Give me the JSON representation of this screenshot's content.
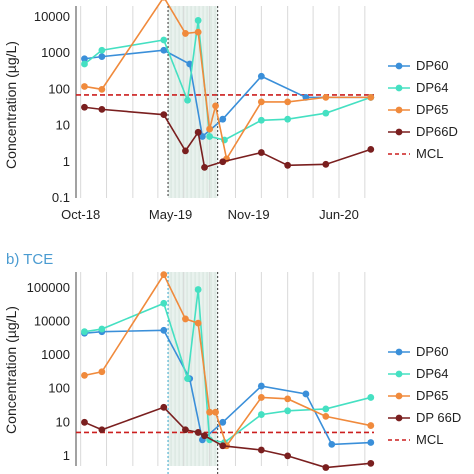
{
  "colors": {
    "DP60": "#3a8fd9",
    "DP64": "#45e0c2",
    "DP65": "#f08a3c",
    "DP66D": "#7a1f1f",
    "MCL": "#cc1f1f",
    "grid": "#d9d9d9",
    "shade": "#cfe3d9",
    "panel_label": "#4a9bd1"
  },
  "chart_data": [
    {
      "panel": "",
      "type": "line",
      "title": "",
      "xlabel": "",
      "ylabel": "Concentration (µg/L)",
      "yscale": "log",
      "ylim": [
        0.1,
        20000
      ],
      "yticks": [
        0.1,
        1,
        10,
        100,
        1000,
        10000
      ],
      "ytick_labels": [
        "0.1",
        "1",
        "10",
        "100",
        "1000",
        "10000"
      ],
      "xlim": [
        "2018-09-20",
        "2020-09-01"
      ],
      "xticks": [
        "2018-10-01",
        "2019-05-01",
        "2019-11-01",
        "2020-06-01"
      ],
      "xtick_labels": [
        "Oct-18",
        "May-19",
        "Nov-19",
        "Jun-20"
      ],
      "vlines": [
        "2019-04-25",
        "2019-08-20"
      ],
      "shaded_x": [
        "2019-04-25",
        "2019-08-20"
      ],
      "grid": "vertical",
      "legend": "right",
      "series": [
        {
          "name": "DP60",
          "x": [
            "2018-10-10",
            "2018-11-20",
            "2019-04-15",
            "2019-06-15",
            "2019-07-15",
            "2019-09-01",
            "2019-12-01",
            "2020-03-15",
            "2020-08-15"
          ],
          "y": [
            700,
            800,
            1200,
            500,
            5,
            15,
            230,
            60,
            60
          ]
        },
        {
          "name": "DP64",
          "x": [
            "2018-10-10",
            "2018-11-20",
            "2019-04-15",
            "2019-06-10",
            "2019-07-05",
            "2019-08-01",
            "2019-09-05",
            "2019-12-01",
            "2020-02-01",
            "2020-05-01",
            "2020-08-15"
          ],
          "y": [
            500,
            1200,
            2300,
            50,
            8000,
            5,
            4,
            14,
            15,
            22,
            60
          ]
        },
        {
          "name": "DP65",
          "x": [
            "2018-10-10",
            "2018-11-20",
            "2019-04-15",
            "2019-06-05",
            "2019-07-05",
            "2019-08-01",
            "2019-08-15",
            "2019-09-10",
            "2019-12-01",
            "2020-02-01",
            "2020-05-01",
            "2020-08-15"
          ],
          "y": [
            120,
            100,
            35000,
            3500,
            3800,
            8,
            35,
            1.2,
            45,
            45,
            60,
            60
          ]
        },
        {
          "name": "DP66D",
          "x": [
            "2018-10-10",
            "2018-11-20",
            "2019-04-15",
            "2019-06-05",
            "2019-07-05",
            "2019-07-20",
            "2019-09-01",
            "2019-12-01",
            "2020-02-01",
            "2020-05-01",
            "2020-08-15"
          ],
          "y": [
            32,
            28,
            20,
            2,
            6.5,
            0.7,
            1,
            1.8,
            0.8,
            0.85,
            2.2
          ]
        }
      ],
      "reference": {
        "name": "MCL",
        "y": 70
      }
    },
    {
      "panel": "b) TCE",
      "type": "line",
      "title": "b) TCE",
      "xlabel": "",
      "ylabel": "Concentration (µg/L)",
      "yscale": "log",
      "ylim": [
        0.5,
        300000
      ],
      "yticks": [
        1,
        10,
        100,
        1000,
        10000,
        100000
      ],
      "ytick_labels": [
        "1",
        "10",
        "100",
        "1000",
        "10000",
        "100000"
      ],
      "xlim": [
        "2018-09-20",
        "2020-09-01"
      ],
      "xticks": [],
      "xtick_labels": [],
      "vlines": [
        "2019-04-25",
        "2019-08-20"
      ],
      "shaded_x": [
        "2019-04-25",
        "2019-08-20"
      ],
      "grid": "vertical",
      "legend": "right",
      "series": [
        {
          "name": "DP60",
          "x": [
            "2018-10-10",
            "2018-11-20",
            "2019-04-15",
            "2019-06-15",
            "2019-07-15",
            "2019-09-01",
            "2019-12-01",
            "2020-03-15",
            "2020-05-15",
            "2020-08-15"
          ],
          "y": [
            4500,
            5000,
            5500,
            200,
            3,
            10,
            120,
            70,
            2.2,
            2.5
          ]
        },
        {
          "name": "DP64",
          "x": [
            "2018-10-10",
            "2018-11-20",
            "2019-04-15",
            "2019-06-10",
            "2019-07-05",
            "2019-08-01",
            "2019-09-05",
            "2019-12-01",
            "2020-02-01",
            "2020-05-01",
            "2020-08-15"
          ],
          "y": [
            5000,
            6000,
            35000,
            200,
            90000,
            3,
            2.5,
            17,
            22,
            25,
            55
          ]
        },
        {
          "name": "DP65",
          "x": [
            "2018-10-10",
            "2018-11-20",
            "2019-04-15",
            "2019-06-05",
            "2019-07-05",
            "2019-08-01",
            "2019-08-15",
            "2019-09-10",
            "2019-12-01",
            "2020-02-01",
            "2020-05-01",
            "2020-08-15"
          ],
          "y": [
            250,
            320,
            250000,
            12000,
            9000,
            20,
            20,
            2,
            55,
            50,
            15,
            8
          ]
        },
        {
          "name": "DP 66D",
          "x": [
            "2018-10-10",
            "2018-11-20",
            "2019-04-15",
            "2019-06-05",
            "2019-07-05",
            "2019-07-20",
            "2019-09-01",
            "2019-12-01",
            "2020-02-01",
            "2020-05-01",
            "2020-08-15"
          ],
          "y": [
            10,
            6,
            28,
            6,
            5,
            4,
            2,
            1.5,
            1,
            0.45,
            0.6
          ]
        }
      ],
      "reference": {
        "name": "MCL",
        "y": 5
      }
    }
  ]
}
